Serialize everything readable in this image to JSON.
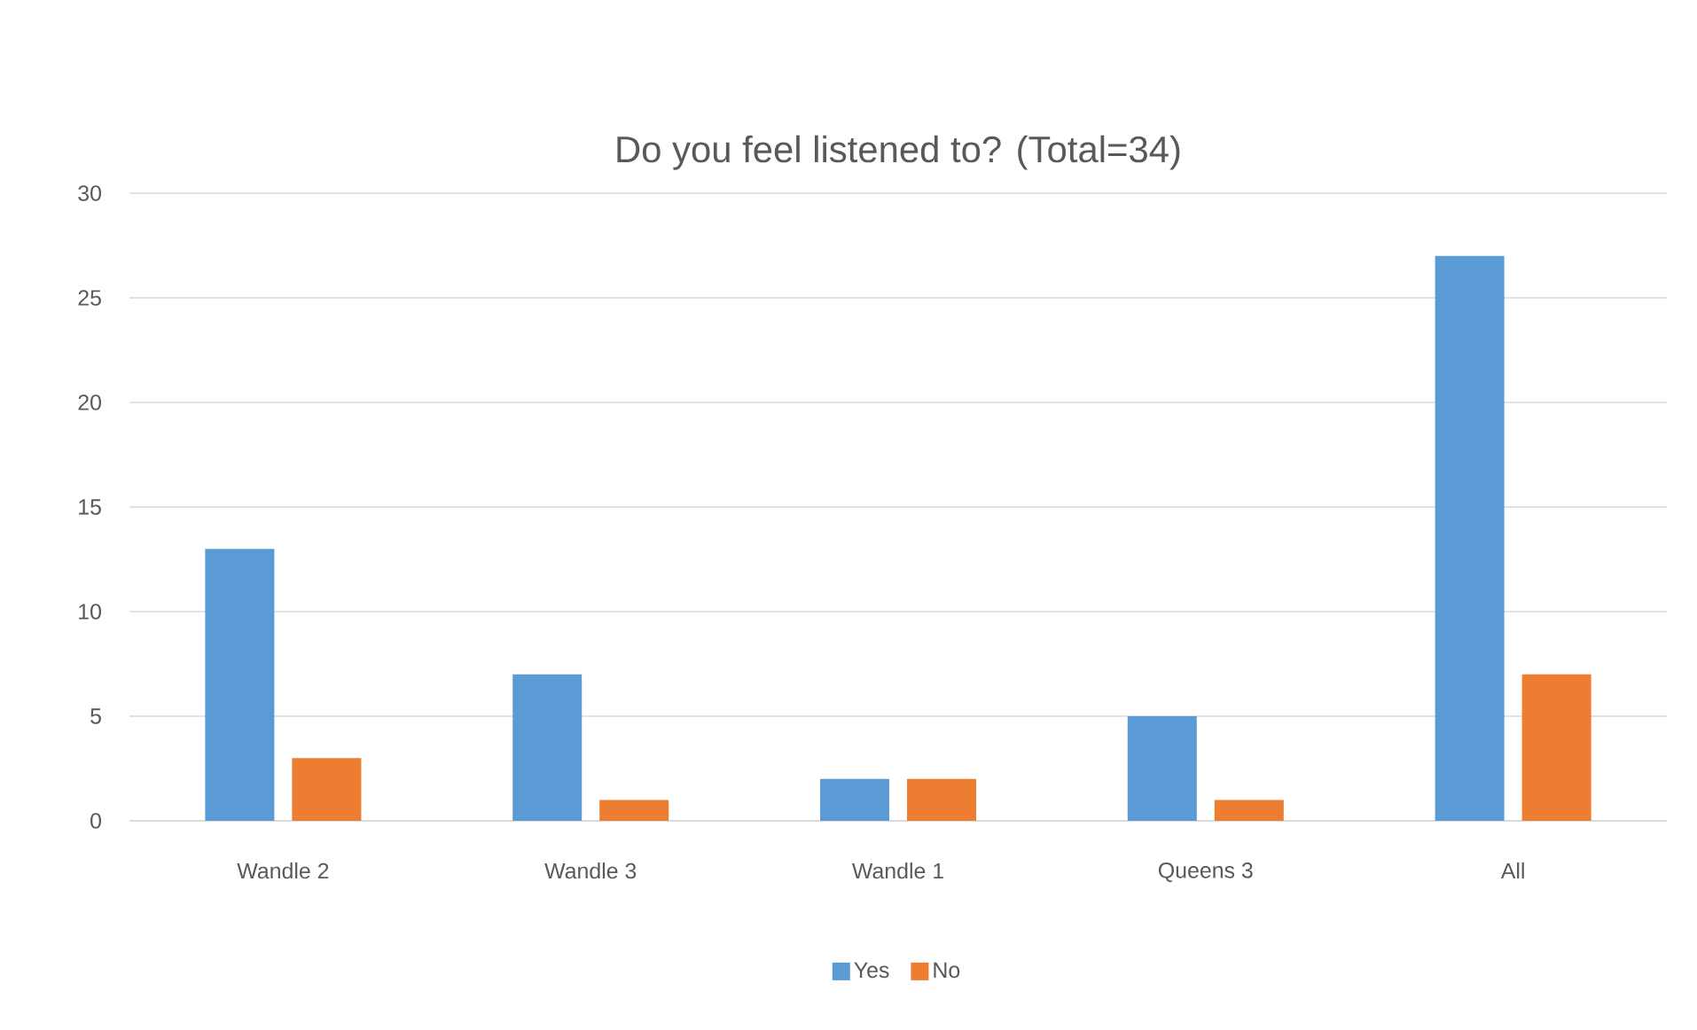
{
  "chart_data": {
    "type": "bar",
    "title": "Do you feel listened to?  (Total=34)",
    "categories": [
      "Wandle 2",
      "Wandle 3",
      "Wandle 1",
      "Queens 3",
      "All"
    ],
    "series": [
      {
        "name": "Yes",
        "color": "#5b9bd5",
        "values": [
          13,
          7,
          2,
          5,
          27
        ]
      },
      {
        "name": "No",
        "color": "#ed7d31",
        "values": [
          3,
          1,
          2,
          1,
          7
        ]
      }
    ],
    "ylim": [
      0,
      30
    ],
    "yticks": [
      0,
      5,
      10,
      15,
      20,
      25,
      30
    ],
    "grid": "y",
    "legend": "bottom"
  }
}
